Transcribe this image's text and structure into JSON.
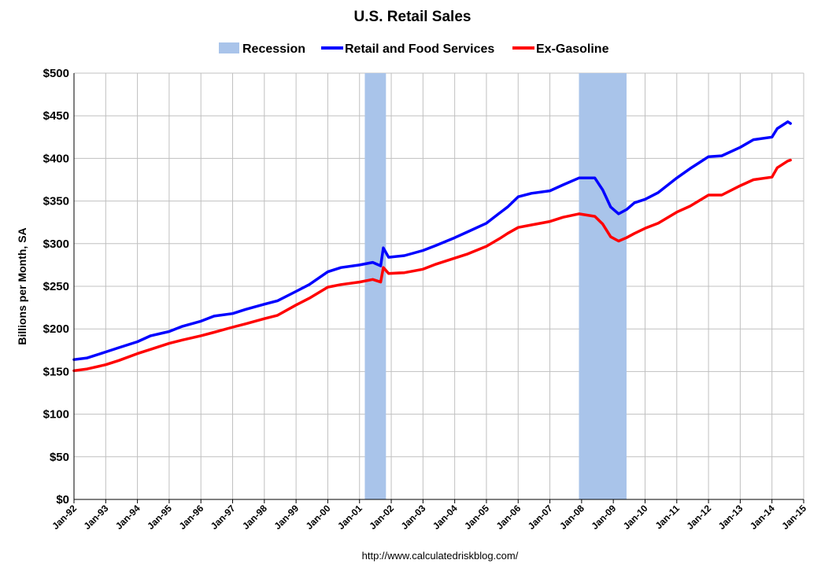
{
  "chart_data": {
    "type": "line",
    "title": "U.S. Retail Sales",
    "xlabel": "",
    "ylabel": "Billions per Month, SA",
    "source_text": "http://www.calculatedriskblog.com/",
    "ylim": [
      0,
      500
    ],
    "y_ticks": [
      "$0",
      "$50",
      "$100",
      "$150",
      "$200",
      "$250",
      "$300",
      "$350",
      "$400",
      "$450",
      "$500"
    ],
    "y_tick_values": [
      0,
      50,
      100,
      150,
      200,
      250,
      300,
      350,
      400,
      450,
      500
    ],
    "x_tick_labels": [
      "Jan-92",
      "Jan-93",
      "Jan-94",
      "Jan-95",
      "Jan-96",
      "Jan-97",
      "Jan-98",
      "Jan-99",
      "Jan-00",
      "Jan-01",
      "Jan-02",
      "Jan-03",
      "Jan-04",
      "Jan-05",
      "Jan-06",
      "Jan-07",
      "Jan-08",
      "Jan-09",
      "Jan-10",
      "Jan-11",
      "Jan-12",
      "Jan-13",
      "Jan-14",
      "Jan-15"
    ],
    "grid": true,
    "legend_position": "top-center",
    "colors": {
      "recession": "#a9c4ea",
      "retail": "#0000ff",
      "exgas": "#ff0000",
      "grid": "#c0c0c0",
      "axis": "#000000"
    },
    "recessions": [
      {
        "start": "2001-03",
        "end": "2001-11"
      },
      {
        "start": "2007-12",
        "end": "2009-06"
      }
    ],
    "legend": [
      {
        "name": "Recession",
        "kind": "patch"
      },
      {
        "name": "Retail and Food Services",
        "kind": "line"
      },
      {
        "name": "Ex-Gasoline",
        "kind": "line"
      }
    ],
    "series": [
      {
        "name": "Retail and Food Services",
        "points": [
          [
            "1992-01",
            164
          ],
          [
            "1992-06",
            166
          ],
          [
            "1993-01",
            173
          ],
          [
            "1993-06",
            178
          ],
          [
            "1994-01",
            185
          ],
          [
            "1994-06",
            192
          ],
          [
            "1995-01",
            197
          ],
          [
            "1995-06",
            203
          ],
          [
            "1996-01",
            209
          ],
          [
            "1996-06",
            215
          ],
          [
            "1997-01",
            218
          ],
          [
            "1997-06",
            223
          ],
          [
            "1998-01",
            229
          ],
          [
            "1998-06",
            233
          ],
          [
            "1999-01",
            244
          ],
          [
            "1999-06",
            252
          ],
          [
            "2000-01",
            267
          ],
          [
            "2000-06",
            272
          ],
          [
            "2001-01",
            275
          ],
          [
            "2001-06",
            278
          ],
          [
            "2001-09",
            274
          ],
          [
            "2001-10",
            295
          ],
          [
            "2001-12",
            284
          ],
          [
            "2002-06",
            286
          ],
          [
            "2003-01",
            292
          ],
          [
            "2003-06",
            298
          ],
          [
            "2004-01",
            307
          ],
          [
            "2004-06",
            314
          ],
          [
            "2005-01",
            324
          ],
          [
            "2005-06",
            336
          ],
          [
            "2005-09",
            343
          ],
          [
            "2006-01",
            355
          ],
          [
            "2006-06",
            359
          ],
          [
            "2007-01",
            362
          ],
          [
            "2007-06",
            369
          ],
          [
            "2007-12",
            377
          ],
          [
            "2008-06",
            377
          ],
          [
            "2008-09",
            363
          ],
          [
            "2008-12",
            343
          ],
          [
            "2009-03",
            335
          ],
          [
            "2009-06",
            340
          ],
          [
            "2009-09",
            348
          ],
          [
            "2010-01",
            352
          ],
          [
            "2010-06",
            360
          ],
          [
            "2011-01",
            377
          ],
          [
            "2011-06",
            388
          ],
          [
            "2012-01",
            402
          ],
          [
            "2012-06",
            403
          ],
          [
            "2013-01",
            413
          ],
          [
            "2013-06",
            422
          ],
          [
            "2014-01",
            425
          ],
          [
            "2014-03",
            435
          ],
          [
            "2014-06",
            441
          ],
          [
            "2014-07",
            443
          ],
          [
            "2014-08",
            441
          ]
        ]
      },
      {
        "name": "Ex-Gasoline",
        "points": [
          [
            "1992-01",
            151
          ],
          [
            "1992-06",
            153
          ],
          [
            "1993-01",
            158
          ],
          [
            "1993-06",
            163
          ],
          [
            "1994-01",
            171
          ],
          [
            "1994-06",
            176
          ],
          [
            "1995-01",
            183
          ],
          [
            "1995-06",
            187
          ],
          [
            "1996-01",
            192
          ],
          [
            "1996-06",
            196
          ],
          [
            "1997-01",
            202
          ],
          [
            "1997-06",
            206
          ],
          [
            "1998-01",
            212
          ],
          [
            "1998-06",
            216
          ],
          [
            "1999-01",
            228
          ],
          [
            "1999-06",
            236
          ],
          [
            "2000-01",
            249
          ],
          [
            "2000-06",
            252
          ],
          [
            "2001-01",
            255
          ],
          [
            "2001-06",
            258
          ],
          [
            "2001-09",
            255
          ],
          [
            "2001-10",
            272
          ],
          [
            "2001-12",
            265
          ],
          [
            "2002-06",
            266
          ],
          [
            "2003-01",
            270
          ],
          [
            "2003-06",
            276
          ],
          [
            "2004-01",
            283
          ],
          [
            "2004-06",
            288
          ],
          [
            "2005-01",
            297
          ],
          [
            "2005-06",
            306
          ],
          [
            "2005-09",
            312
          ],
          [
            "2006-01",
            319
          ],
          [
            "2006-06",
            322
          ],
          [
            "2007-01",
            326
          ],
          [
            "2007-06",
            331
          ],
          [
            "2007-12",
            335
          ],
          [
            "2008-06",
            332
          ],
          [
            "2008-09",
            323
          ],
          [
            "2008-12",
            308
          ],
          [
            "2009-03",
            303
          ],
          [
            "2009-06",
            307
          ],
          [
            "2009-09",
            312
          ],
          [
            "2010-01",
            318
          ],
          [
            "2010-06",
            324
          ],
          [
            "2011-01",
            337
          ],
          [
            "2011-06",
            344
          ],
          [
            "2012-01",
            357
          ],
          [
            "2012-06",
            357
          ],
          [
            "2013-01",
            368
          ],
          [
            "2013-06",
            375
          ],
          [
            "2014-01",
            378
          ],
          [
            "2014-03",
            389
          ],
          [
            "2014-06",
            395
          ],
          [
            "2014-07",
            397
          ],
          [
            "2014-08",
            398
          ]
        ]
      }
    ]
  }
}
